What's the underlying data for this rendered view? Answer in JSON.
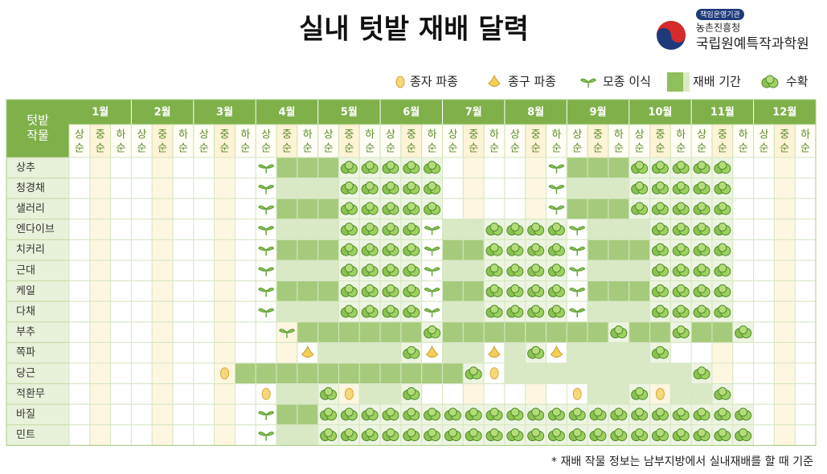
{
  "header": {
    "title": "실내 텃밭 재배 달력",
    "logo": {
      "badge": "책임운영기관",
      "org": "농촌진흥청",
      "institute": "국립원예특작과학원"
    }
  },
  "legend": [
    "종자 파종",
    "종구 파종",
    "모종 이식",
    "재배 기간",
    "수확"
  ],
  "table": {
    "corner": [
      "텃밭",
      "작물"
    ],
    "months": [
      "1월",
      "2월",
      "3월",
      "4월",
      "5월",
      "6월",
      "7월",
      "8월",
      "9월",
      "10월",
      "11월",
      "12월"
    ],
    "periods": [
      "상",
      "중",
      "하"
    ],
    "period_suffix": "순",
    "crops": [
      "상추",
      "청경채",
      "샐러리",
      "엔다이브",
      "치커리",
      "근대",
      "케일",
      "다채",
      "부추",
      "쪽파",
      "당근",
      "적환무",
      "바질",
      "민트"
    ]
  },
  "footnote": "*  재배 작물 정보는 남부지방에서 실내재배를 할 때 기준"
}
